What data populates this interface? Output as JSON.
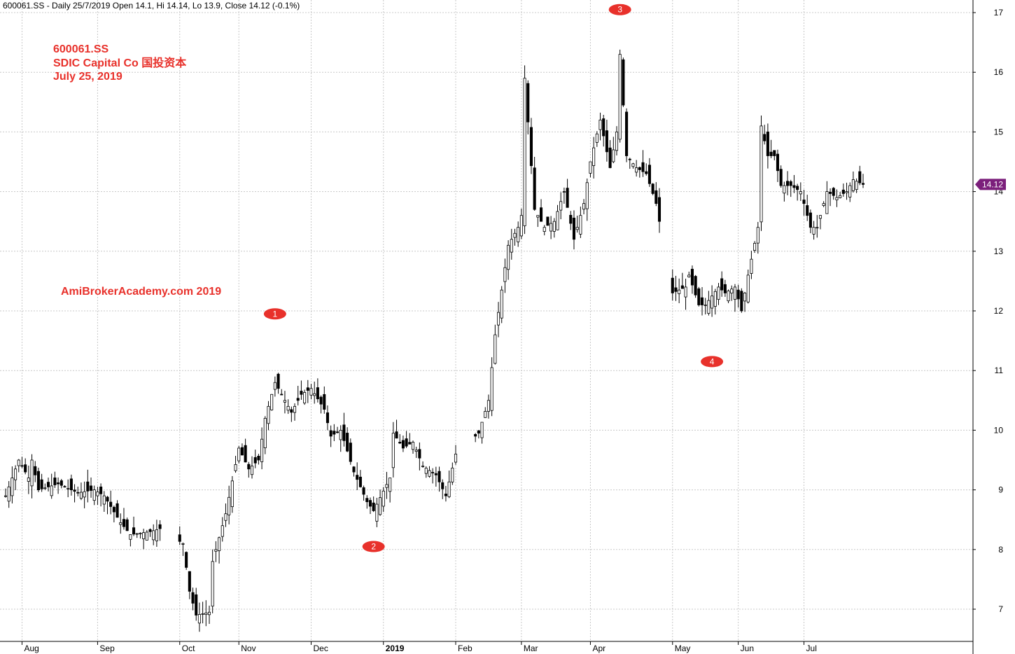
{
  "header": "600061.SS - Daily 25/7/2019 Open 14.1, Hi 14.14, Lo 13.9, Close 14.12 (-0.1%)",
  "annotation": {
    "ticker": "600061.SS",
    "company": "SDIC Capital Co 国投资本",
    "date": "July 25, 2019",
    "watermark": "AmiBrokerAcademy.com  2019"
  },
  "colors": {
    "up": "#ffffff",
    "down": "#000000",
    "wick": "#000000",
    "grid": "#c8c8c8",
    "accent": "#e8312b",
    "price_tag": "#7b1f7b"
  },
  "chart_data": {
    "type": "candlestick",
    "ylim": [
      6.6,
      17.1
    ],
    "yticks": [
      7,
      8,
      9,
      10,
      11,
      12,
      13,
      14,
      15,
      16,
      17
    ],
    "ytick_labels": [
      "7",
      "8",
      "9",
      "10",
      "11",
      "12",
      "13",
      "14",
      "15",
      "16",
      "17"
    ],
    "x_period": [
      "2018-07-25",
      "2019-07-25"
    ],
    "xticks": [
      {
        "label": "Aug",
        "date": "2018-08-01",
        "bold": false
      },
      {
        "label": "Sep",
        "date": "2018-09-03",
        "bold": false
      },
      {
        "label": "Oct",
        "date": "2018-10-08",
        "bold": false
      },
      {
        "label": "Nov",
        "date": "2018-11-01",
        "bold": false
      },
      {
        "label": "Dec",
        "date": "2018-12-03",
        "bold": false
      },
      {
        "label": "2019",
        "date": "2019-01-02",
        "bold": true
      },
      {
        "label": "Feb",
        "date": "2019-02-01",
        "bold": false
      },
      {
        "label": "Mar",
        "date": "2019-03-01",
        "bold": false
      },
      {
        "label": "Apr",
        "date": "2019-04-01",
        "bold": false
      },
      {
        "label": "May",
        "date": "2019-05-06",
        "bold": false
      },
      {
        "label": "Jun",
        "date": "2019-06-03",
        "bold": false
      },
      {
        "label": "Jul",
        "date": "2019-07-01",
        "bold": false
      }
    ],
    "last_price": "14.12",
    "markers": [
      {
        "label": "1",
        "date": "2018-11-16",
        "price": 11.95
      },
      {
        "label": "2",
        "date": "2018-12-28",
        "price": 8.05
      },
      {
        "label": "3",
        "date": "2019-04-12",
        "price": 17.05
      },
      {
        "label": "4",
        "date": "2019-05-22",
        "price": 11.15
      }
    ],
    "anchors": [
      [
        "2018-07-25",
        8.9
      ],
      [
        "2018-07-31",
        9.5
      ],
      [
        "2018-08-03",
        9.2
      ],
      [
        "2018-08-06",
        9.5
      ],
      [
        "2018-08-08",
        9.0
      ],
      [
        "2018-08-16",
        9.1
      ],
      [
        "2018-08-24",
        8.95
      ],
      [
        "2018-08-31",
        9.0
      ],
      [
        "2018-09-05",
        8.9
      ],
      [
        "2018-09-12",
        8.45
      ],
      [
        "2018-09-17",
        8.25
      ],
      [
        "2018-09-25",
        8.3
      ],
      [
        "2018-09-28",
        8.35
      ],
      [
        "2018-10-09",
        8.1
      ],
      [
        "2018-10-11",
        7.3
      ],
      [
        "2018-10-15",
        6.9
      ],
      [
        "2018-10-19",
        6.95
      ],
      [
        "2018-10-22",
        7.8
      ],
      [
        "2018-10-26",
        8.6
      ],
      [
        "2018-11-01",
        9.7
      ],
      [
        "2018-11-06",
        9.35
      ],
      [
        "2018-11-09",
        9.5
      ],
      [
        "2018-11-13",
        10.2
      ],
      [
        "2018-11-16",
        10.8
      ],
      [
        "2018-11-23",
        10.3
      ],
      [
        "2018-11-28",
        10.6
      ],
      [
        "2018-12-03",
        10.7
      ],
      [
        "2018-12-07",
        10.35
      ],
      [
        "2018-12-11",
        9.9
      ],
      [
        "2018-12-14",
        10.0
      ],
      [
        "2018-12-20",
        9.3
      ],
      [
        "2018-12-26",
        8.8
      ],
      [
        "2018-12-28",
        8.65
      ],
      [
        "2019-01-04",
        9.2
      ],
      [
        "2019-01-07",
        9.95
      ],
      [
        "2019-01-10",
        9.7
      ],
      [
        "2019-01-15",
        9.8
      ],
      [
        "2019-01-18",
        9.4
      ],
      [
        "2019-01-24",
        9.25
      ],
      [
        "2019-01-29",
        8.9
      ],
      [
        "2019-02-01",
        9.6
      ],
      [
        "2019-02-12",
        9.95
      ],
      [
        "2019-02-15",
        10.5
      ],
      [
        "2019-02-19",
        11.6
      ],
      [
        "2019-02-25",
        13.1
      ],
      [
        "2019-02-28",
        13.4
      ],
      [
        "2019-03-01",
        13.6
      ],
      [
        "2019-03-04",
        15.9
      ],
      [
        "2019-03-07",
        13.7
      ],
      [
        "2019-03-12",
        13.4
      ],
      [
        "2019-03-15",
        13.5
      ],
      [
        "2019-03-20",
        14.0
      ],
      [
        "2019-03-25",
        13.2
      ],
      [
        "2019-03-28",
        13.8
      ],
      [
        "2019-04-01",
        14.5
      ],
      [
        "2019-04-04",
        15.2
      ],
      [
        "2019-04-09",
        14.4
      ],
      [
        "2019-04-11",
        15.0
      ],
      [
        "2019-04-12",
        16.3
      ],
      [
        "2019-04-16",
        14.6
      ],
      [
        "2019-04-19",
        14.4
      ],
      [
        "2019-04-24",
        14.3
      ],
      [
        "2019-04-29",
        13.8
      ],
      [
        "2019-05-06",
        12.3
      ],
      [
        "2019-05-10",
        12.4
      ],
      [
        "2019-05-13",
        12.6
      ],
      [
        "2019-05-16",
        12.1
      ],
      [
        "2019-05-20",
        12.1
      ],
      [
        "2019-05-24",
        12.4
      ],
      [
        "2019-05-28",
        12.3
      ],
      [
        "2019-05-31",
        12.4
      ],
      [
        "2019-06-04",
        12.0
      ],
      [
        "2019-06-06",
        12.6
      ],
      [
        "2019-06-11",
        13.4
      ],
      [
        "2019-06-12",
        15.1
      ],
      [
        "2019-06-14",
        14.6
      ],
      [
        "2019-06-18",
        14.6
      ],
      [
        "2019-06-20",
        14.1
      ],
      [
        "2019-06-25",
        14.1
      ],
      [
        "2019-06-28",
        14.0
      ],
      [
        "2019-07-03",
        13.4
      ],
      [
        "2019-07-05",
        13.4
      ],
      [
        "2019-07-10",
        14.0
      ],
      [
        "2019-07-15",
        13.9
      ],
      [
        "2019-07-18",
        14.0
      ],
      [
        "2019-07-22",
        14.2
      ],
      [
        "2019-07-25",
        14.12
      ]
    ]
  }
}
